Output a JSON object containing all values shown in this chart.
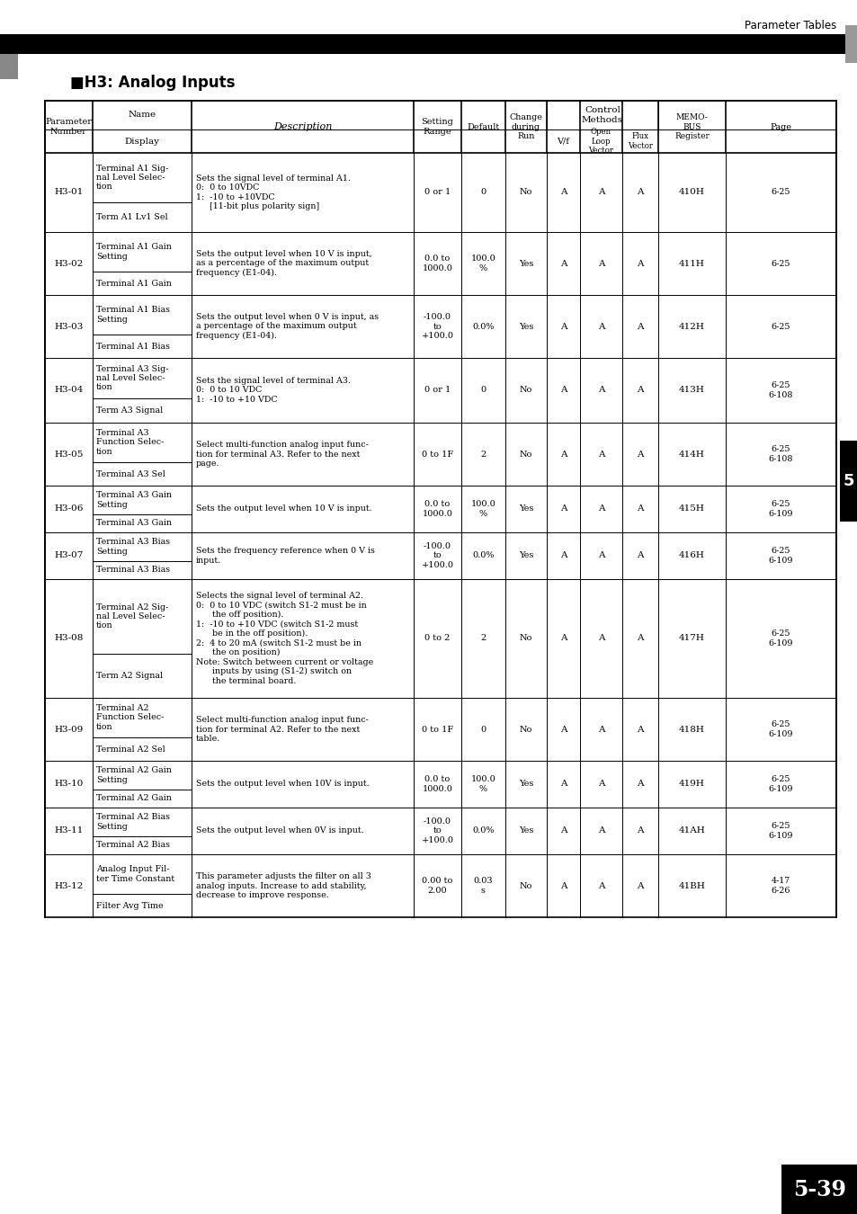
{
  "page_title": "Parameter Tables",
  "section_title": "■H3: Analog Inputs",
  "page_number": "5-39",
  "chapter_number": "5",
  "rows": [
    {
      "param": "H3-01",
      "name": "Terminal A1 Sig-\nnal Level Selec-\ntion",
      "display": "Term A1 Lv1 Sel",
      "desc": "Sets the signal level of terminal A1.\n0:  0 to 10VDC\n1:  -10 to +10VDC\n     [11-bit plus polarity sign]",
      "range": "0 or 1",
      "default": "0",
      "change": "No",
      "vf": "A",
      "open": "A",
      "flux": "A",
      "memo": "410H",
      "page": "6-25"
    },
    {
      "param": "H3-02",
      "name": "Terminal A1 Gain\nSetting",
      "display": "Terminal A1 Gain",
      "desc": "Sets the output level when 10 V is input,\nas a percentage of the maximum output\nfrequency (E1-04).",
      "range": "0.0 to\n1000.0",
      "default": "100.0\n%",
      "change": "Yes",
      "vf": "A",
      "open": "A",
      "flux": "A",
      "memo": "411H",
      "page": "6-25"
    },
    {
      "param": "H3-03",
      "name": "Terminal A1 Bias\nSetting",
      "display": "Terminal A1 Bias",
      "desc": "Sets the output level when 0 V is input, as\na percentage of the maximum output\nfrequency (E1-04).",
      "range": "-100.0\nto\n+100.0",
      "default": "0.0%",
      "change": "Yes",
      "vf": "A",
      "open": "A",
      "flux": "A",
      "memo": "412H",
      "page": "6-25"
    },
    {
      "param": "H3-04",
      "name": "Terminal A3 Sig-\nnal Level Selec-\ntion",
      "display": "Term A3 Signal",
      "desc": "Sets the signal level of terminal A3.\n0:  0 to 10 VDC\n1:  -10 to +10 VDC",
      "range": "0 or 1",
      "default": "0",
      "change": "No",
      "vf": "A",
      "open": "A",
      "flux": "A",
      "memo": "413H",
      "page": "6-25\n6-108"
    },
    {
      "param": "H3-05",
      "name": "Terminal A3\nFunction Selec-\ntion",
      "display": "Terminal A3 Sel",
      "desc": "Select multi-function analog input func-\ntion for terminal A3. Refer to the next\npage.",
      "range": "0 to 1F",
      "default": "2",
      "change": "No",
      "vf": "A",
      "open": "A",
      "flux": "A",
      "memo": "414H",
      "page": "6-25\n6-108"
    },
    {
      "param": "H3-06",
      "name": "Terminal A3 Gain\nSetting",
      "display": "Terminal A3 Gain",
      "desc": "Sets the output level when 10 V is input.",
      "range": "0.0 to\n1000.0",
      "default": "100.0\n%",
      "change": "Yes",
      "vf": "A",
      "open": "A",
      "flux": "A",
      "memo": "415H",
      "page": "6-25\n6-109"
    },
    {
      "param": "H3-07",
      "name": "Terminal A3 Bias\nSetting",
      "display": "Terminal A3 Bias",
      "desc": "Sets the frequency reference when 0 V is\ninput.",
      "range": "-100.0\nto\n+100.0",
      "default": "0.0%",
      "change": "Yes",
      "vf": "A",
      "open": "A",
      "flux": "A",
      "memo": "416H",
      "page": "6-25\n6-109"
    },
    {
      "param": "H3-08",
      "name": "Terminal A2 Sig-\nnal Level Selec-\ntion",
      "display": "Term A2 Signal",
      "desc": "Selects the signal level of terminal A2.\n0:  0 to 10 VDC (switch S1-2 must be in\n      the off position).\n1:  -10 to +10 VDC (switch S1-2 must\n      be in the off position).\n2:  4 to 20 mA (switch S1-2 must be in\n      the on position)\nNote: Switch between current or voltage\n      inputs by using (S1-2) switch on\n      the terminal board.",
      "range": "0 to 2",
      "default": "2",
      "change": "No",
      "vf": "A",
      "open": "A",
      "flux": "A",
      "memo": "417H",
      "page": "6-25\n6-109"
    },
    {
      "param": "H3-09",
      "name": "Terminal A2\nFunction Selec-\ntion",
      "display": "Terminal A2 Sel",
      "desc": "Select multi-function analog input func-\ntion for terminal A2. Refer to the next\ntable.",
      "range": "0 to 1F",
      "default": "0",
      "change": "No",
      "vf": "A",
      "open": "A",
      "flux": "A",
      "memo": "418H",
      "page": "6-25\n6-109"
    },
    {
      "param": "H3-10",
      "name": "Terminal A2 Gain\nSetting",
      "display": "Terminal A2 Gain",
      "desc": "Sets the output level when 10V is input.",
      "range": "0.0 to\n1000.0",
      "default": "100.0\n%",
      "change": "Yes",
      "vf": "A",
      "open": "A",
      "flux": "A",
      "memo": "419H",
      "page": "6-25\n6-109"
    },
    {
      "param": "H3-11",
      "name": "Terminal A2 Bias\nSetting",
      "display": "Terminal A2 Bias",
      "desc": "Sets the output level when 0V is input.",
      "range": "-100.0\nto\n+100.0",
      "default": "0.0%",
      "change": "Yes",
      "vf": "A",
      "open": "A",
      "flux": "A",
      "memo": "41AH",
      "page": "6-25\n6-109"
    },
    {
      "param": "H3-12",
      "name": "Analog Input Fil-\nter Time Constant",
      "display": "Filter Avg Time",
      "desc": "This parameter adjusts the filter on all 3\nanalog inputs. Increase to add stability,\ndecrease to improve response.",
      "range": "0.00 to\n2.00",
      "default": "0.03\ns",
      "change": "No",
      "vf": "A",
      "open": "A",
      "flux": "A",
      "memo": "41BH",
      "page": "4-17\n6-26"
    }
  ]
}
